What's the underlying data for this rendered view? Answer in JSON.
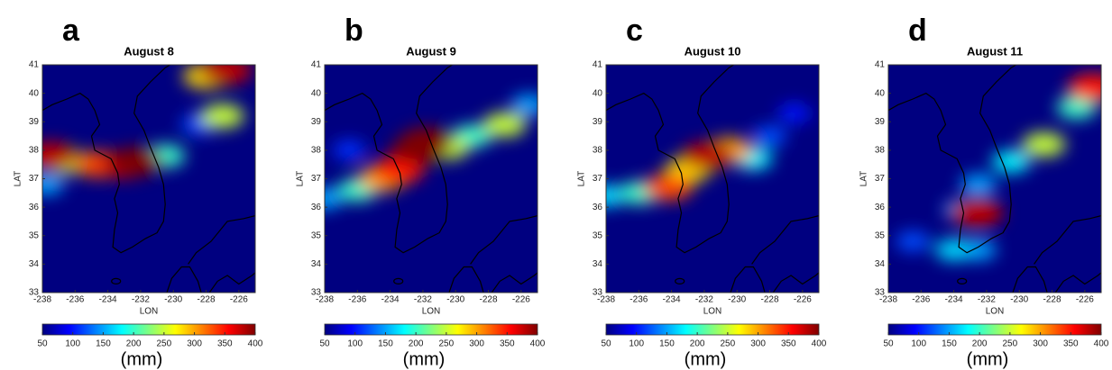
{
  "chart_data": [
    {
      "type": "heatmap",
      "label": "a",
      "title": "August 8",
      "xlabel": "LON",
      "ylabel": "LAT",
      "xlim": [
        -238,
        -225
      ],
      "xticks": [
        -238,
        -236,
        -234,
        -232,
        -230,
        -228,
        -226
      ],
      "ylim": [
        33,
        41
      ],
      "yticks": [
        33,
        34,
        35,
        36,
        37,
        38,
        39,
        40,
        41
      ],
      "colormap": "jet",
      "clim": [
        50,
        400
      ],
      "cticks": [
        50,
        100,
        150,
        200,
        250,
        300,
        350,
        400
      ],
      "clabel": "(mm)",
      "x": [
        -228.5,
        -237.8,
        -230.5,
        -236.5,
        -228,
        -227,
        -234.5,
        -233,
        -237.5,
        -226.8,
        -232.3
      ],
      "y": [
        38.9,
        36.8,
        37.8,
        37.6,
        40.6,
        39.2,
        37.5,
        37.5,
        37.8,
        40.8,
        37.6
      ],
      "values": [
        120,
        150,
        200,
        250,
        280,
        250,
        330,
        370,
        380,
        380,
        400
      ]
    },
    {
      "type": "heatmap",
      "label": "b",
      "title": "August 9",
      "xlabel": "LON",
      "ylabel": "LAT",
      "xlim": [
        -238,
        -225
      ],
      "xticks": [
        -238,
        -236,
        -234,
        -232,
        -230,
        -228,
        -226
      ],
      "ylim": [
        33,
        41
      ],
      "yticks": [
        33,
        34,
        35,
        36,
        37,
        38,
        39,
        40,
        41
      ],
      "colormap": "jet",
      "clim": [
        50,
        400
      ],
      "cticks": [
        50,
        100,
        150,
        200,
        250,
        300,
        350,
        400
      ],
      "clabel": "(mm)",
      "x": [
        -236.5,
        -238,
        -225.5,
        -236,
        -229,
        -227,
        -230.5,
        -234.5,
        -233.5,
        -232.3,
        -231.8
      ],
      "y": [
        38,
        36.3,
        39.6,
        36.6,
        38.5,
        38.9,
        38.1,
        37.0,
        37.3,
        38.0,
        38.3
      ],
      "values": [
        110,
        150,
        150,
        200,
        200,
        250,
        250,
        300,
        350,
        400,
        400
      ]
    },
    {
      "type": "heatmap",
      "label": "c",
      "title": "August 10",
      "xlabel": "LON",
      "ylabel": "LAT",
      "xlim": [
        -238,
        -225
      ],
      "xticks": [
        -238,
        -236,
        -234,
        -232,
        -230,
        -228,
        -226
      ],
      "ylim": [
        33,
        41
      ],
      "yticks": [
        33,
        34,
        35,
        36,
        37,
        38,
        39,
        40,
        41
      ],
      "colormap": "jet",
      "clim": [
        50,
        400
      ],
      "cticks": [
        50,
        100,
        150,
        200,
        250,
        300,
        350,
        400
      ],
      "clabel": "(mm)",
      "x": [
        -226.5,
        -228,
        -238,
        -229,
        -236,
        -233,
        -230.5,
        -234.2,
        -231.8
      ],
      "y": [
        39.3,
        38.5,
        36.4,
        37.7,
        36.5,
        37.3,
        38,
        36.7,
        37.8
      ],
      "values": [
        100,
        120,
        170,
        180,
        200,
        280,
        300,
        330,
        380
      ]
    },
    {
      "type": "heatmap",
      "label": "d",
      "title": "August 11",
      "xlabel": "LON",
      "ylabel": "LAT",
      "xlim": [
        -238,
        -225
      ],
      "xticks": [
        -238,
        -236,
        -234,
        -232,
        -230,
        -228,
        -226
      ],
      "ylim": [
        33,
        41
      ],
      "yticks": [
        33,
        34,
        35,
        36,
        37,
        38,
        39,
        40,
        41
      ],
      "colormap": "jet",
      "clim": [
        50,
        400
      ],
      "cticks": [
        50,
        100,
        150,
        200,
        250,
        300,
        350,
        400
      ],
      "clabel": "(mm)",
      "x": [
        -236.5,
        -232.5,
        -233.5,
        -232.5,
        -234,
        -230.5,
        -226.5,
        -228.5,
        -225.5,
        -232.6
      ],
      "y": [
        34.8,
        34.5,
        35.9,
        36.8,
        34.5,
        37.6,
        39.5,
        38.2,
        40.2,
        35.8
      ],
      "values": [
        120,
        150,
        150,
        150,
        170,
        180,
        200,
        250,
        350,
        380
      ]
    }
  ]
}
